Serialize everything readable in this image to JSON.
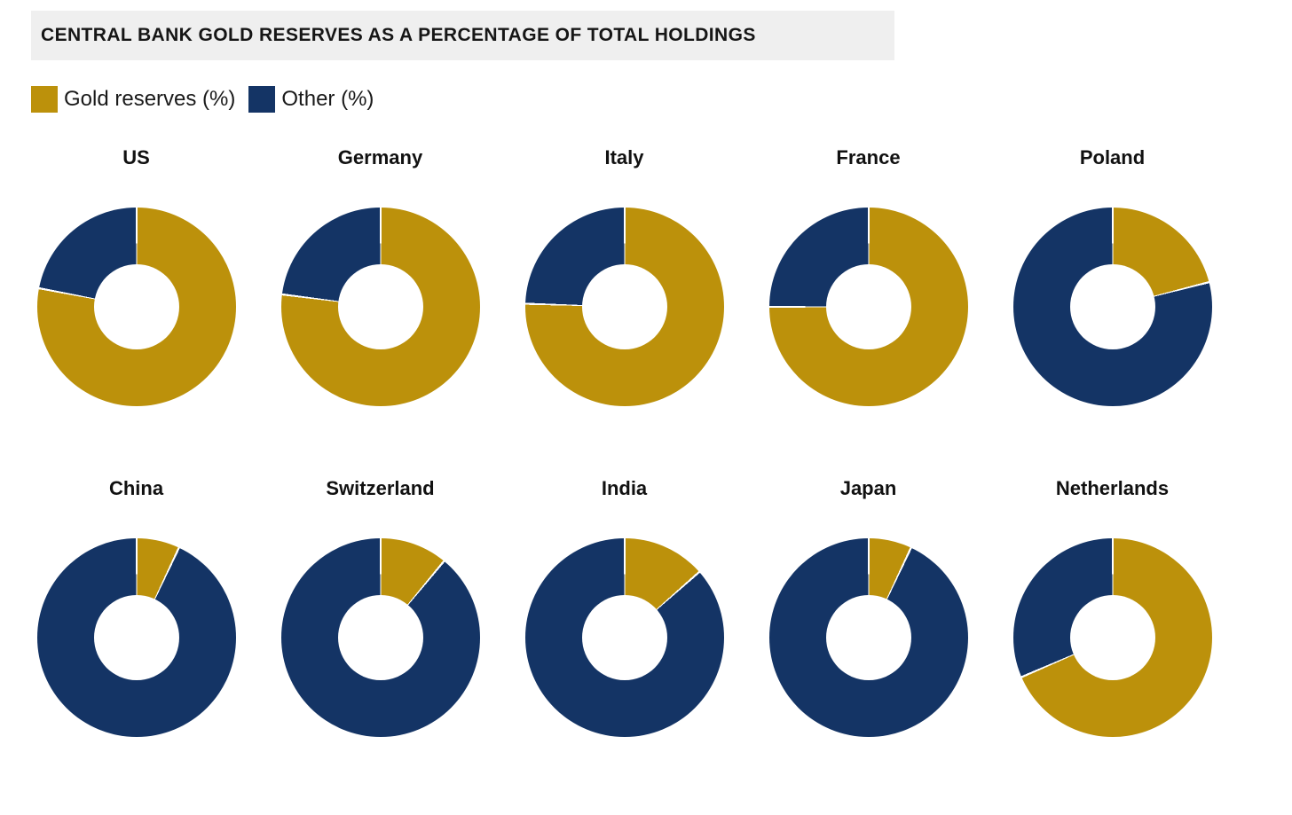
{
  "header": {
    "title": "CENTRAL BANK GOLD RESERVES AS A PERCENTAGE OF TOTAL HOLDINGS"
  },
  "legend": [
    {
      "label": "Gold reserves (%)",
      "color": "#BC910B"
    },
    {
      "label": "Other (%)",
      "color": "#143465"
    }
  ],
  "colors": {
    "gold": "#BC910B",
    "navy": "#143465",
    "title_bg": "#EFEFEF",
    "page_bg": "#FFFFFF"
  },
  "chart_data": {
    "type": "pie",
    "variant": "donut-small-multiples",
    "layout": "2 rows x 5 columns, slices start at 12 o'clock clockwise, gold slice first",
    "series_names": [
      "Gold reserves (%)",
      "Other (%)"
    ],
    "title": "CENTRAL BANK GOLD RESERVES AS A PERCENTAGE OF TOTAL HOLDINGS",
    "legend_position": "top-left",
    "charts": [
      {
        "label": "US",
        "gold": 78,
        "other": 22
      },
      {
        "label": "Germany",
        "gold": 77,
        "other": 23
      },
      {
        "label": "Italy",
        "gold": 75.5,
        "other": 24.5
      },
      {
        "label": "France",
        "gold": 75,
        "other": 25
      },
      {
        "label": "Poland",
        "gold": 21,
        "other": 79
      },
      {
        "label": "China",
        "gold": 7,
        "other": 93
      },
      {
        "label": "Switzerland",
        "gold": 11,
        "other": 89
      },
      {
        "label": "India",
        "gold": 13.5,
        "other": 86.5
      },
      {
        "label": "Japan",
        "gold": 7,
        "other": 93
      },
      {
        "label": "Netherlands",
        "gold": 68.5,
        "other": 31.5
      }
    ]
  }
}
